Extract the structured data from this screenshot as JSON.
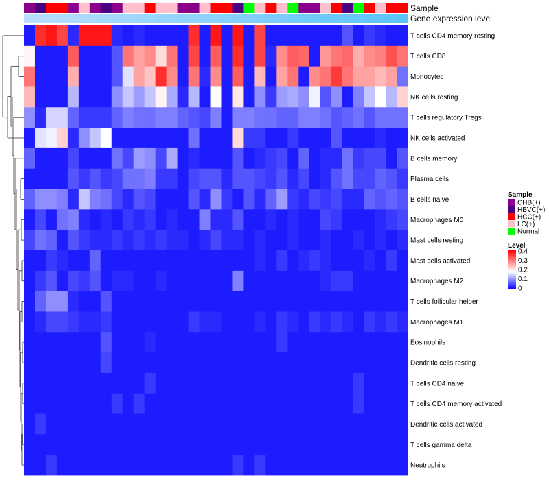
{
  "chart_data": {
    "type": "heatmap",
    "annotation_tracks": {
      "sample_label": "Sample",
      "level_label": "Gene expression level"
    },
    "sample_legend": {
      "title": "Sample",
      "entries": [
        {
          "label": "CHB(+)",
          "color": "#8B008B"
        },
        {
          "label": "HBVC(+)",
          "color": "#4B0082"
        },
        {
          "label": "HCC(+)",
          "color": "#FF0000"
        },
        {
          "label": "LC(+)",
          "color": "#FFC0CB"
        },
        {
          "label": "Normal",
          "color": "#00FF00"
        }
      ]
    },
    "level_legend": {
      "title": "Level",
      "ticks": [
        "0.4",
        "0.3",
        "0.2",
        "0.1",
        "0"
      ],
      "range": [
        0,
        0.4
      ],
      "colors": {
        "low": "#0000FF",
        "mid": "#FFFFFF",
        "high": "#FF0000"
      }
    },
    "sample_groups": [
      "CHB(+)",
      "HBVC(+)",
      "HCC(+)",
      "HCC(+)",
      "CHB(+)",
      "LC(+)",
      "CHB(+)",
      "HBVC(+)",
      "CHB(+)",
      "LC(+)",
      "LC(+)",
      "HCC(+)",
      "LC(+)",
      "LC(+)",
      "CHB(+)",
      "CHB(+)",
      "LC(+)",
      "HCC(+)",
      "HCC(+)",
      "HBVC(+)",
      "Normal",
      "LC(+)",
      "HCC(+)",
      "LC(+)",
      "Normal",
      "CHB(+)",
      "CHB(+)",
      "LC(+)",
      "HCC(+)",
      "HBVC(+)",
      "Normal",
      "HCC(+)",
      "LC(+)",
      "HCC(+)",
      "HCC(+)"
    ],
    "rows": [
      "T cells CD4 memory resting",
      "T cells CD8",
      "Monocytes",
      "NK cells resting",
      "T cells regulatory  Tregs",
      "NK cells activated",
      "B cells memory",
      "Plasma cells",
      "B cells naive",
      "Macrophages M0",
      "Mast cells resting",
      "Mast cells activated",
      "Macrophages M2",
      "T cells follicular helper",
      "Macrophages M1",
      "Eosinophils",
      "Dendritic cells resting",
      "T cells CD4 naive",
      "T cells CD4 memory activated",
      "Dendritic cells activated",
      "T cells gamma delta",
      "Neutrophils"
    ],
    "values": [
      [
        0.02,
        0.36,
        0.38,
        0.34,
        0.03,
        0.38,
        0.38,
        0.38,
        0.03,
        0.02,
        0.03,
        0.02,
        0.02,
        0.02,
        0.02,
        0.36,
        0.02,
        0.38,
        0.02,
        0.38,
        0.02,
        0.34,
        0.02,
        0.02,
        0.02,
        0.02,
        0.02,
        0.02,
        0.02,
        0.06,
        0.02,
        0.04,
        0.03,
        0.02,
        0.02
      ],
      [
        0.19,
        0.02,
        0.02,
        0.02,
        0.32,
        0.02,
        0.02,
        0.02,
        0.06,
        0.3,
        0.26,
        0.28,
        0.21,
        0.3,
        0.02,
        0.34,
        0.02,
        0.32,
        0.02,
        0.36,
        0.02,
        0.34,
        0.03,
        0.28,
        0.32,
        0.31,
        0.02,
        0.27,
        0.3,
        0.31,
        0.25,
        0.28,
        0.29,
        0.33,
        0.3
      ],
      [
        0.3,
        0.02,
        0.02,
        0.02,
        0.25,
        0.02,
        0.02,
        0.02,
        0.06,
        0.16,
        0.26,
        0.23,
        0.36,
        0.28,
        0.02,
        0.3,
        0.03,
        0.28,
        0.02,
        0.32,
        0.02,
        0.24,
        0.02,
        0.26,
        0.3,
        0.02,
        0.28,
        0.3,
        0.35,
        0.3,
        0.26,
        0.26,
        0.24,
        0.26,
        0.08
      ],
      [
        0.24,
        0.02,
        0.02,
        0.02,
        0.13,
        0.02,
        0.02,
        0.02,
        0.1,
        0.14,
        0.11,
        0.14,
        0.19,
        0.12,
        0.03,
        0.13,
        0.02,
        0.18,
        0.02,
        0.2,
        0.02,
        0.1,
        0.04,
        0.11,
        0.12,
        0.1,
        0.17,
        0.06,
        0.1,
        0.02,
        0.09,
        0.14,
        0.18,
        0.13,
        0.22
      ],
      [
        0.1,
        0.03,
        0.15,
        0.15,
        0.07,
        0.04,
        0.04,
        0.04,
        0.07,
        0.09,
        0.08,
        0.08,
        0.09,
        0.09,
        0.07,
        0.06,
        0.05,
        0.09,
        0.02,
        0.09,
        0.09,
        0.08,
        0.08,
        0.07,
        0.07,
        0.09,
        0.09,
        0.08,
        0.06,
        0.07,
        0.08,
        0.06,
        0.08,
        0.08,
        0.08
      ],
      [
        0.02,
        0.16,
        0.17,
        0.22,
        0.03,
        0.1,
        0.14,
        0.18,
        0.02,
        0.02,
        0.02,
        0.02,
        0.02,
        0.02,
        0.02,
        0.08,
        0.02,
        0.02,
        0.02,
        0.21,
        0.04,
        0.04,
        0.02,
        0.02,
        0.04,
        0.02,
        0.02,
        0.02,
        0.06,
        0.02,
        0.02,
        0.02,
        0.03,
        0.02,
        0.02
      ],
      [
        0.07,
        0.02,
        0.02,
        0.02,
        0.05,
        0.02,
        0.02,
        0.02,
        0.08,
        0.05,
        0.11,
        0.1,
        0.05,
        0.12,
        0.02,
        0.03,
        0.02,
        0.02,
        0.02,
        0.06,
        0.02,
        0.03,
        0.04,
        0.05,
        0.02,
        0.07,
        0.02,
        0.03,
        0.03,
        0.08,
        0.04,
        0.05,
        0.05,
        0.02,
        0.06
      ],
      [
        0.02,
        0.02,
        0.02,
        0.02,
        0.06,
        0.04,
        0.06,
        0.04,
        0.05,
        0.08,
        0.08,
        0.09,
        0.04,
        0.04,
        0.02,
        0.05,
        0.06,
        0.06,
        0.03,
        0.06,
        0.06,
        0.05,
        0.04,
        0.06,
        0.03,
        0.05,
        0.02,
        0.03,
        0.06,
        0.08,
        0.05,
        0.05,
        0.07,
        0.06,
        0.04
      ],
      [
        0.07,
        0.1,
        0.1,
        0.09,
        0.03,
        0.14,
        0.09,
        0.08,
        0.05,
        0.03,
        0.06,
        0.05,
        0.02,
        0.02,
        0.02,
        0.06,
        0.03,
        0.1,
        0.04,
        0.02,
        0.06,
        0.03,
        0.07,
        0.11,
        0.04,
        0.03,
        0.05,
        0.04,
        0.05,
        0.03,
        0.03,
        0.07,
        0.06,
        0.07,
        0.06
      ],
      [
        0.02,
        0.05,
        0.02,
        0.08,
        0.09,
        0.03,
        0.02,
        0.03,
        0.02,
        0.04,
        0.03,
        0.04,
        0.02,
        0.03,
        0.02,
        0.02,
        0.09,
        0.03,
        0.03,
        0.06,
        0.02,
        0.02,
        0.03,
        0.02,
        0.03,
        0.02,
        0.02,
        0.05,
        0.04,
        0.02,
        0.02,
        0.02,
        0.03,
        0.04,
        0.05
      ],
      [
        0.05,
        0.08,
        0.07,
        0.02,
        0.06,
        0.04,
        0.03,
        0.03,
        0.04,
        0.03,
        0.04,
        0.03,
        0.04,
        0.03,
        0.03,
        0.02,
        0.03,
        0.05,
        0.03,
        0.03,
        0.02,
        0.03,
        0.02,
        0.02,
        0.03,
        0.02,
        0.02,
        0.03,
        0.02,
        0.02,
        0.03,
        0.02,
        0.03,
        0.02,
        0.03
      ],
      [
        0.02,
        0.02,
        0.04,
        0.03,
        0.02,
        0.02,
        0.07,
        0.02,
        0.02,
        0.02,
        0.02,
        0.02,
        0.02,
        0.02,
        0.02,
        0.02,
        0.02,
        0.02,
        0.02,
        0.02,
        0.02,
        0.03,
        0.02,
        0.04,
        0.02,
        0.03,
        0.04,
        0.03,
        0.02,
        0.02,
        0.02,
        0.03,
        0.02,
        0.04,
        0.02
      ],
      [
        0.02,
        0.04,
        0.06,
        0.02,
        0.05,
        0.04,
        0.06,
        0.02,
        0.03,
        0.03,
        0.02,
        0.02,
        0.03,
        0.02,
        0.02,
        0.02,
        0.02,
        0.02,
        0.02,
        0.09,
        0.02,
        0.02,
        0.02,
        0.02,
        0.02,
        0.02,
        0.02,
        0.03,
        0.04,
        0.04,
        0.02,
        0.02,
        0.02,
        0.02,
        0.02
      ],
      [
        0.02,
        0.07,
        0.1,
        0.1,
        0.03,
        0.02,
        0.02,
        0.06,
        0.02,
        0.02,
        0.02,
        0.02,
        0.02,
        0.02,
        0.02,
        0.02,
        0.02,
        0.02,
        0.02,
        0.02,
        0.02,
        0.02,
        0.02,
        0.02,
        0.02,
        0.02,
        0.02,
        0.02,
        0.02,
        0.02,
        0.02,
        0.02,
        0.02,
        0.02,
        0.02
      ],
      [
        0.02,
        0.03,
        0.05,
        0.05,
        0.04,
        0.03,
        0.03,
        0.04,
        0.02,
        0.02,
        0.02,
        0.02,
        0.02,
        0.02,
        0.02,
        0.04,
        0.03,
        0.03,
        0.02,
        0.02,
        0.02,
        0.03,
        0.02,
        0.04,
        0.03,
        0.02,
        0.04,
        0.03,
        0.04,
        0.03,
        0.02,
        0.04,
        0.03,
        0.04,
        0.03
      ],
      [
        0.02,
        0.02,
        0.02,
        0.02,
        0.02,
        0.02,
        0.02,
        0.06,
        0.02,
        0.02,
        0.02,
        0.03,
        0.02,
        0.02,
        0.02,
        0.02,
        0.02,
        0.02,
        0.02,
        0.02,
        0.02,
        0.02,
        0.02,
        0.04,
        0.02,
        0.02,
        0.02,
        0.02,
        0.02,
        0.02,
        0.02,
        0.02,
        0.02,
        0.02,
        0.02
      ],
      [
        0.02,
        0.02,
        0.02,
        0.02,
        0.02,
        0.02,
        0.02,
        0.05,
        0.02,
        0.02,
        0.02,
        0.02,
        0.02,
        0.02,
        0.02,
        0.02,
        0.02,
        0.02,
        0.02,
        0.02,
        0.02,
        0.02,
        0.02,
        0.02,
        0.02,
        0.02,
        0.02,
        0.02,
        0.02,
        0.02,
        0.02,
        0.02,
        0.02,
        0.02,
        0.02
      ],
      [
        0.02,
        0.02,
        0.02,
        0.02,
        0.02,
        0.02,
        0.02,
        0.02,
        0.02,
        0.02,
        0.02,
        0.04,
        0.02,
        0.02,
        0.02,
        0.02,
        0.02,
        0.02,
        0.02,
        0.02,
        0.02,
        0.02,
        0.02,
        0.02,
        0.02,
        0.02,
        0.02,
        0.02,
        0.02,
        0.02,
        0.04,
        0.02,
        0.02,
        0.02,
        0.02
      ],
      [
        0.02,
        0.02,
        0.02,
        0.02,
        0.02,
        0.02,
        0.02,
        0.02,
        0.04,
        0.02,
        0.04,
        0.02,
        0.02,
        0.02,
        0.02,
        0.02,
        0.02,
        0.02,
        0.02,
        0.02,
        0.02,
        0.02,
        0.02,
        0.02,
        0.02,
        0.02,
        0.02,
        0.02,
        0.02,
        0.02,
        0.04,
        0.02,
        0.02,
        0.02,
        0.02
      ],
      [
        0.02,
        0.04,
        0.02,
        0.02,
        0.02,
        0.02,
        0.02,
        0.02,
        0.02,
        0.02,
        0.02,
        0.02,
        0.02,
        0.02,
        0.02,
        0.02,
        0.02,
        0.02,
        0.02,
        0.02,
        0.02,
        0.02,
        0.02,
        0.02,
        0.02,
        0.02,
        0.02,
        0.02,
        0.02,
        0.02,
        0.02,
        0.02,
        0.02,
        0.02,
        0.02
      ],
      [
        0.02,
        0.02,
        0.02,
        0.02,
        0.02,
        0.02,
        0.02,
        0.02,
        0.02,
        0.02,
        0.02,
        0.02,
        0.02,
        0.02,
        0.02,
        0.02,
        0.02,
        0.02,
        0.02,
        0.02,
        0.02,
        0.02,
        0.02,
        0.02,
        0.02,
        0.02,
        0.02,
        0.02,
        0.02,
        0.02,
        0.02,
        0.02,
        0.02,
        0.02,
        0.02
      ],
      [
        0.02,
        0.02,
        0.04,
        0.02,
        0.02,
        0.02,
        0.02,
        0.02,
        0.02,
        0.02,
        0.02,
        0.02,
        0.02,
        0.02,
        0.02,
        0.02,
        0.02,
        0.02,
        0.02,
        0.04,
        0.02,
        0.04,
        0.02,
        0.02,
        0.02,
        0.02,
        0.02,
        0.02,
        0.02,
        0.02,
        0.02,
        0.02,
        0.02,
        0.02,
        0.02
      ]
    ]
  }
}
